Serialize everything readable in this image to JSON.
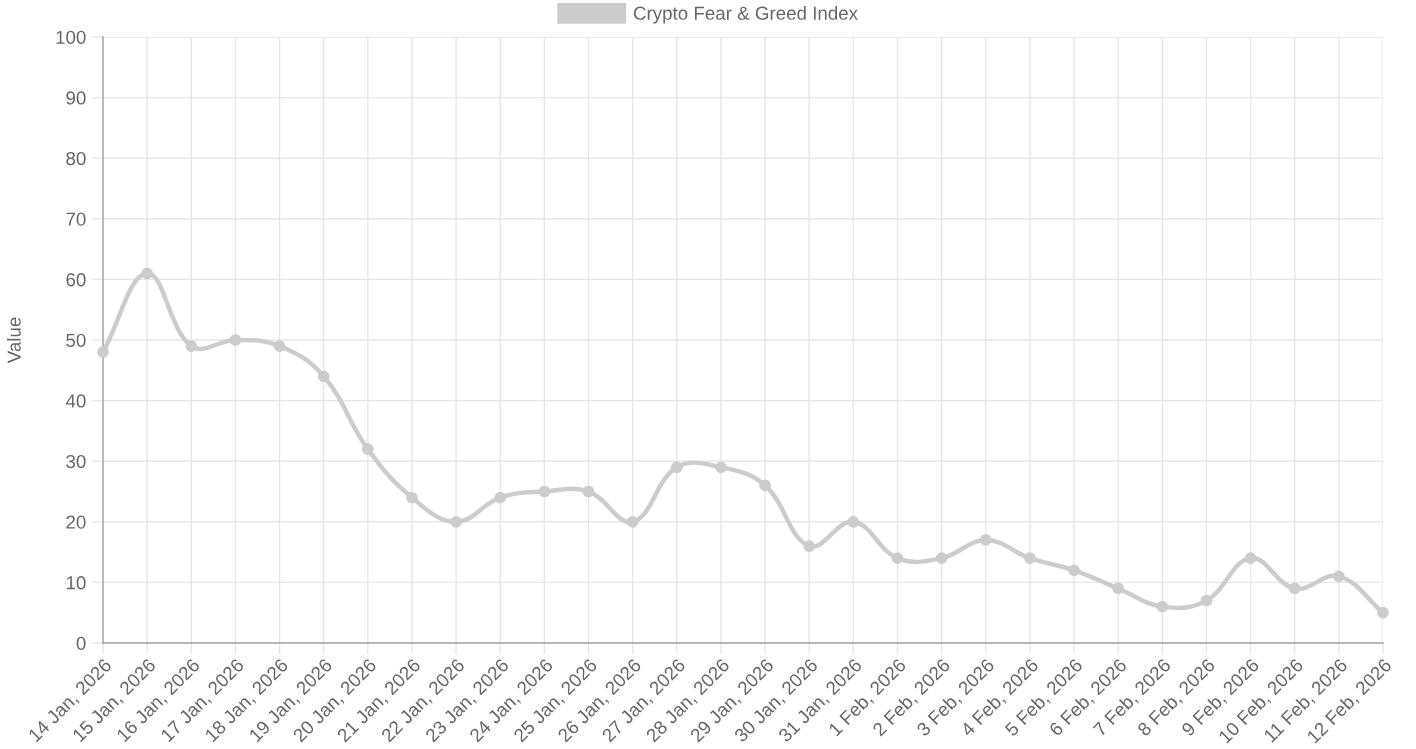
{
  "chart_data": {
    "type": "line",
    "ylabel": "Value",
    "categories": [
      "14 Jan, 2026",
      "15 Jan, 2026",
      "16 Jan, 2026",
      "17 Jan, 2026",
      "18 Jan, 2026",
      "19 Jan, 2026",
      "20 Jan, 2026",
      "21 Jan, 2026",
      "22 Jan, 2026",
      "23 Jan, 2026",
      "24 Jan, 2026",
      "25 Jan, 2026",
      "26 Jan, 2026",
      "27 Jan, 2026",
      "28 Jan, 2026",
      "29 Jan, 2026",
      "30 Jan, 2026",
      "31 Jan, 2026",
      "1 Feb, 2026",
      "2 Feb, 2026",
      "3 Feb, 2026",
      "4 Feb, 2026",
      "5 Feb, 2026",
      "6 Feb, 2026",
      "7 Feb, 2026",
      "8 Feb, 2026",
      "9 Feb, 2026",
      "10 Feb, 2026",
      "11 Feb, 2026",
      "12 Feb, 2026"
    ],
    "series": [
      {
        "name": "Crypto Fear & Greed Index",
        "color": "#cccccc",
        "values": [
          48,
          61,
          49,
          50,
          49,
          44,
          32,
          24,
          20,
          24,
          25,
          25,
          20,
          29,
          29,
          26,
          16,
          20,
          14,
          14,
          17,
          14,
          12,
          9,
          6,
          7,
          14,
          9,
          11,
          5
        ]
      }
    ],
    "ylim": [
      0,
      100
    ],
    "yticks": [
      0,
      10,
      20,
      30,
      40,
      50,
      60,
      70,
      80,
      90,
      100
    ],
    "grid": true,
    "legend": "top",
    "marker": "circle",
    "line_style": "solid"
  }
}
